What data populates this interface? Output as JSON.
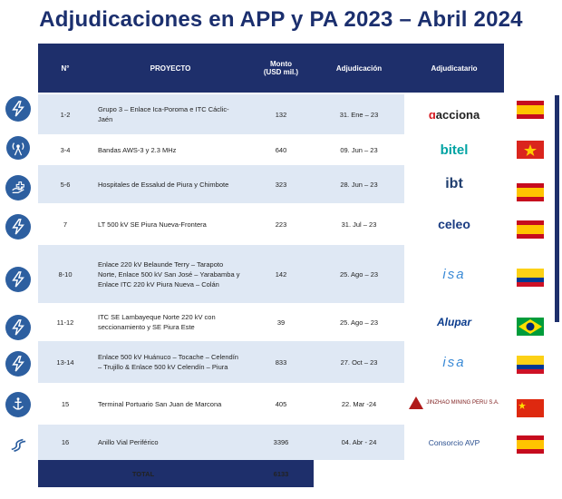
{
  "title": "Adjudicaciones en APP y PA 2023 – Abril 2024",
  "headers": {
    "n": "N°",
    "proyecto": "PROYECTO",
    "monto": "Monto\n(USD mil.)",
    "adjudicacion": "Adjudicación",
    "adjudicatario": "Adjudicatario"
  },
  "rows": [
    {
      "n": "1-2",
      "proyecto": "Grupo 3 – Enlace Ica-Poroma e ITC Cáclic-Jaén",
      "monto": "132",
      "fecha": "31. Ene – 23",
      "adjudicatario": "acciona",
      "sector_icon": "lightning-icon",
      "flag": "spain"
    },
    {
      "n": "3-4",
      "proyecto": "Bandas AWS-3 y 2.3 MHz",
      "monto": "640",
      "fecha": "09. Jun – 23",
      "adjudicatario": "bitel",
      "sector_icon": "antenna-icon",
      "flag": "vietnam"
    },
    {
      "n": "5-6",
      "proyecto": "Hospitales de Essalud de Piura y Chimbote",
      "monto": "323",
      "fecha": "28. Jun – 23",
      "adjudicatario": "ibt",
      "sector_icon": "health-icon",
      "flag": "spain"
    },
    {
      "n": "7",
      "proyecto": "LT 500 kV SE Piura Nueva-Frontera",
      "monto": "223",
      "fecha": "31. Jul – 23",
      "adjudicatario": "celeo",
      "sector_icon": "lightning-icon",
      "flag": "spain"
    },
    {
      "n": "8-10",
      "proyecto": "Enlace 220 kV Belaunde Terry – Tarapoto Norte, Enlace 500 kV San José – Yarabamba y Enlace ITC 220 kV Piura Nueva – Colán",
      "monto": "142",
      "fecha": "25. Ago – 23",
      "adjudicatario": "isa",
      "sector_icon": "lightning-icon",
      "flag": "colombia"
    },
    {
      "n": "11-12",
      "proyecto": "ITC SE Lambayeque Norte 220 kV con seccionamiento y SE Piura Este",
      "monto": "39",
      "fecha": "25. Ago – 23",
      "adjudicatario": "Alupar",
      "sector_icon": "lightning-icon",
      "flag": "brazil"
    },
    {
      "n": "13-14",
      "proyecto": "Enlace 500 kV Huánuco – Tocache – Celendín – Trujillo & Enlace 500 kV Celendín – Piura",
      "monto": "833",
      "fecha": "27. Oct – 23",
      "adjudicatario": "isa",
      "sector_icon": "lightning-icon",
      "flag": "colombia"
    },
    {
      "n": "15",
      "proyecto": "Terminal Portuario San Juan de Marcona",
      "monto": "405",
      "fecha": "22. Mar -24",
      "adjudicatario": "JINZHAO MINING PERU S.A.",
      "sector_icon": "port-icon",
      "flag": "china"
    },
    {
      "n": "16",
      "proyecto": "Anillo Vial Periférico",
      "monto": "3396",
      "fecha": "04. Abr - 24",
      "adjudicatario": "Consorcio AVP",
      "sector_icon": "road-icon",
      "flag": "spain"
    }
  ],
  "total": {
    "label": "TOTAL",
    "monto": "6133"
  }
}
